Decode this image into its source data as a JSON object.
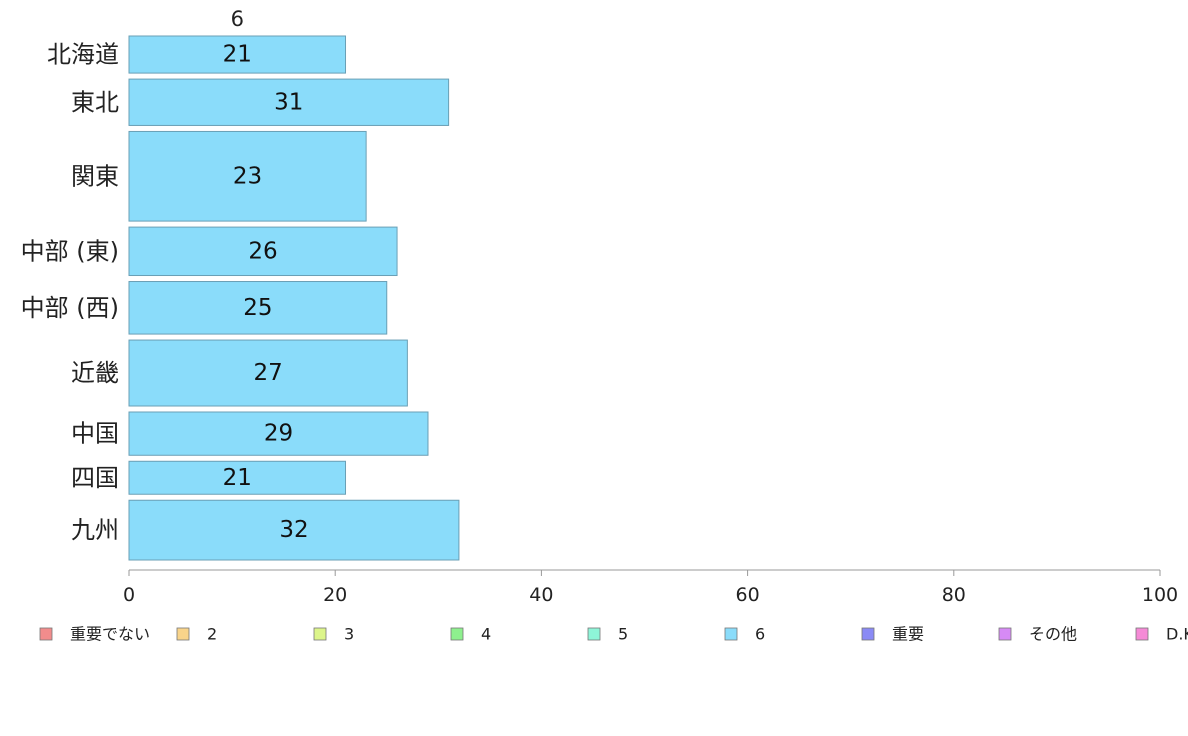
{
  "chart_data": {
    "type": "bar",
    "orientation": "horizontal",
    "series_label": "6",
    "categories": [
      "北海道",
      "東北",
      "関東",
      "中部 (東)",
      "中部 (西)",
      "近畿",
      "中国",
      "四国",
      "九州"
    ],
    "values": [
      21,
      31,
      23,
      26,
      25,
      27,
      29,
      21,
      32
    ],
    "bar_thickness_share": [
      36,
      45,
      87,
      47,
      51,
      64,
      42,
      32,
      58
    ],
    "xlim": [
      0,
      100
    ],
    "x_ticks": [
      "0",
      "20",
      "40",
      "60",
      "80",
      "100"
    ],
    "legend_position": "bottom",
    "legend": [
      {
        "label": "重要でない",
        "color": "#f28c8c"
      },
      {
        "label": "2",
        "color": "#f9d48a"
      },
      {
        "label": "3",
        "color": "#dcf58a"
      },
      {
        "label": "4",
        "color": "#8ef08e"
      },
      {
        "label": "5",
        "color": "#8ef5d8"
      },
      {
        "label": "6",
        "color": "#8adcfa"
      },
      {
        "label": "重要",
        "color": "#8a8af5"
      },
      {
        "label": "その他",
        "color": "#d68af5"
      },
      {
        "label": "D.K.",
        "color": "#f58ad6"
      }
    ],
    "bar_color": "#8adcfa",
    "bar_stroke": "#6a9fb5",
    "axis_color": "#999999"
  }
}
